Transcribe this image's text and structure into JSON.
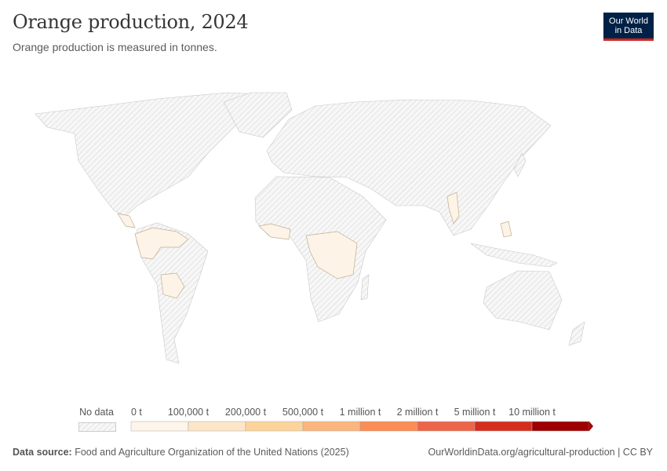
{
  "header": {
    "title": "Orange production, 2024",
    "subtitle": "Orange production is measured in tonnes.",
    "logo_line1": "Our World",
    "logo_line2": "in Data",
    "logo_color": "#002147",
    "logo_accent": "#ce261e"
  },
  "map": {
    "no_data_fill": "#eeeeee",
    "highlight_fill": "#fdf3e6",
    "highlight_note": "countries with data"
  },
  "legend": {
    "no_data_label": "No data",
    "bins": [
      {
        "label": "0 t",
        "color": "#fef4e9"
      },
      {
        "label": "100,000 t",
        "color": "#fde6c7"
      },
      {
        "label": "200,000 t",
        "color": "#fcd49b"
      },
      {
        "label": "500,000 t",
        "color": "#fbb57e"
      },
      {
        "label": "1 million t",
        "color": "#fb8d55"
      },
      {
        "label": "2 million t",
        "color": "#ec6549"
      },
      {
        "label": "5 million t",
        "color": "#d42e1f"
      },
      {
        "label": "10 million t",
        "color": "#9e0000"
      }
    ]
  },
  "footer": {
    "source_label": "Data source:",
    "source": "Food and Agriculture Organization of the United Nations (2025)",
    "url": "OurWorldinData.org/agricultural-production | CC BY"
  }
}
